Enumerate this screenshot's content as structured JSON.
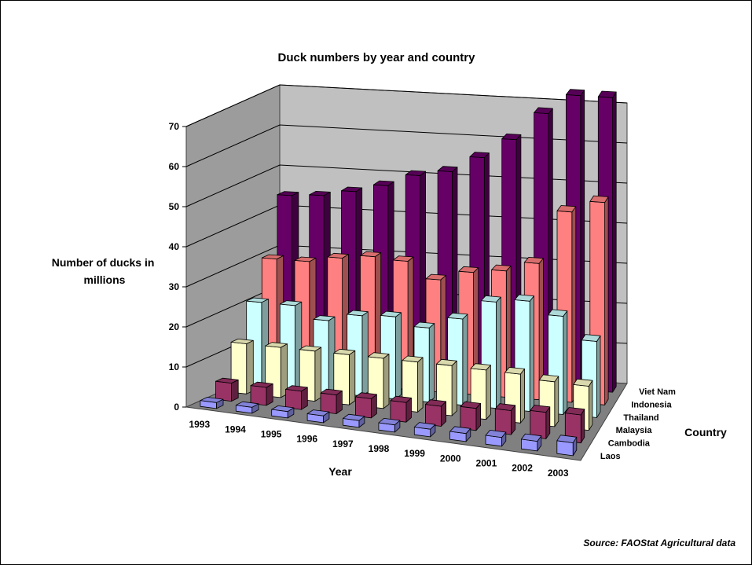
{
  "chart_data": {
    "type": "bar",
    "title": "Duck numbers by year and country",
    "ylabel_lines": [
      "Number of ducks in",
      "millions"
    ],
    "xlabel": "Year",
    "zlabel": "Country",
    "source": "Source: FAOStat Agricultural data",
    "ylim": [
      0,
      70
    ],
    "yticks": [
      0,
      10,
      20,
      30,
      40,
      50,
      60,
      70
    ],
    "grid": true,
    "categories": [
      "1993",
      "1994",
      "1995",
      "1996",
      "1997",
      "1998",
      "1999",
      "2000",
      "2001",
      "2002",
      "2003"
    ],
    "series": [
      {
        "name": "Laos",
        "color": "#9999ff",
        "values": [
          1.5,
          1.5,
          1.6,
          1.7,
          1.7,
          1.8,
          1.9,
          2.0,
          2.2,
          2.4,
          3.2
        ]
      },
      {
        "name": "Cambodia",
        "color": "#993366",
        "values": [
          4.5,
          4.5,
          4.6,
          4.7,
          4.8,
          4.9,
          5.0,
          5.5,
          6.0,
          6.6,
          7.0
        ]
      },
      {
        "name": "Malaysia",
        "color": "#ffffcc",
        "values": [
          12.5,
          12.5,
          12.5,
          12.5,
          12.5,
          12.5,
          12.5,
          12.3,
          12.2,
          11.2,
          11.0
        ]
      },
      {
        "name": "Thailand",
        "color": "#ccffff",
        "values": [
          21.0,
          21.0,
          18.0,
          20.0,
          20.5,
          18.5,
          21.5,
          26.5,
          27.5,
          24.5,
          19.0
        ]
      },
      {
        "name": "Indonesia",
        "color": "#ff8080",
        "values": [
          30.0,
          30.0,
          31.5,
          32.5,
          32.0,
          28.0,
          30.5,
          31.5,
          34.0,
          47.5,
          50.5
        ]
      },
      {
        "name": "Viet Nam",
        "color": "#660066",
        "values": [
          44.0,
          44.5,
          46.0,
          48.0,
          51.0,
          52.5,
          56.5,
          61.5,
          68.5,
          73.5,
          73.5
        ]
      }
    ]
  }
}
